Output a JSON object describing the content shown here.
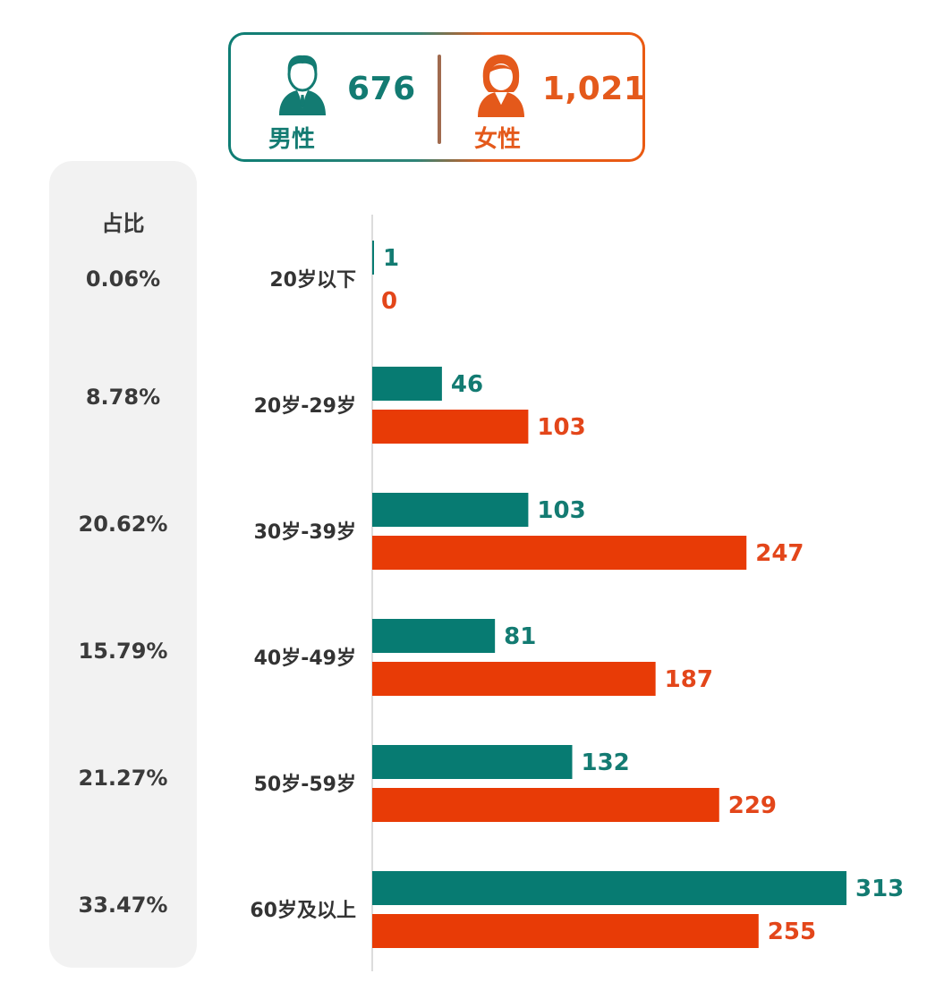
{
  "summary": {
    "male": {
      "label": "男性",
      "count": "676",
      "icon": "man-avatar-icon",
      "color": "#137b72"
    },
    "female": {
      "label": "女性",
      "count": "1,021",
      "icon": "woman-avatar-icon",
      "color": "#e4591b"
    }
  },
  "share_panel": {
    "title": "占比",
    "values": [
      "0.06%",
      "8.78%",
      "20.62%",
      "15.79%",
      "21.27%",
      "33.47%"
    ]
  },
  "chart_data": {
    "type": "bar",
    "orientation": "horizontal",
    "title": "",
    "xlabel": "",
    "ylabel": "",
    "xlim": [
      0,
      313
    ],
    "categories": [
      "20岁以下",
      "20岁-29岁",
      "30岁-39岁",
      "40岁-49岁",
      "50岁-59岁",
      "60岁及以上"
    ],
    "series": [
      {
        "name": "男性",
        "color": "#077b72",
        "values": [
          1,
          46,
          103,
          81,
          132,
          313
        ]
      },
      {
        "name": "女性",
        "color": "#e83b06",
        "values": [
          0,
          103,
          247,
          187,
          229,
          255
        ]
      }
    ],
    "label_colors": {
      "男性": "#137b72",
      "女性": "#e3461a"
    }
  }
}
